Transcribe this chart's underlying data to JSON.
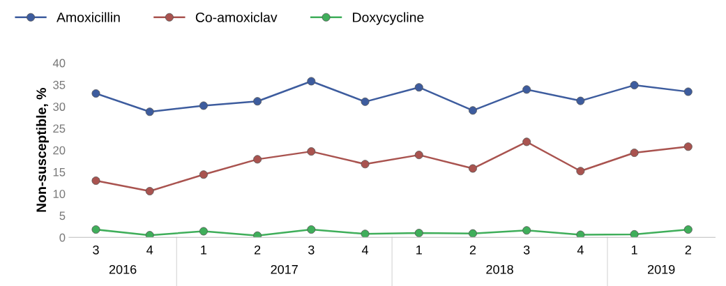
{
  "chart_data": {
    "type": "line",
    "ylabel": "Non-susceptible, %",
    "categories": [
      "3",
      "4",
      "1",
      "2",
      "3",
      "4",
      "1",
      "2",
      "3",
      "4",
      "1",
      "2"
    ],
    "annotations": [
      "2016",
      "2017",
      "2018",
      "2019"
    ],
    "series": [
      {
        "name": "Amoxicillin",
        "color": "#3d5c9e",
        "values": [
          33.0,
          28.8,
          30.2,
          31.2,
          35.8,
          31.1,
          34.4,
          29.1,
          33.9,
          31.3,
          34.9,
          33.4
        ]
      },
      {
        "name": "Co-amoxiclav",
        "color": "#a9534f",
        "values": [
          13.0,
          10.6,
          14.4,
          17.9,
          19.7,
          16.8,
          18.9,
          15.8,
          21.9,
          15.2,
          19.4,
          20.8
        ]
      },
      {
        "name": "Doxycycline",
        "color": "#3fae5a",
        "values": [
          1.8,
          0.5,
          1.4,
          0.4,
          1.8,
          0.8,
          1.0,
          0.9,
          1.6,
          0.6,
          0.7,
          1.8
        ]
      }
    ],
    "ylim": [
      0,
      40
    ],
    "yticks": [
      0,
      5,
      10,
      15,
      20,
      25,
      30,
      35,
      40
    ],
    "marker": "circle",
    "line_style": "solid",
    "legend": "top left",
    "grid": false
  }
}
